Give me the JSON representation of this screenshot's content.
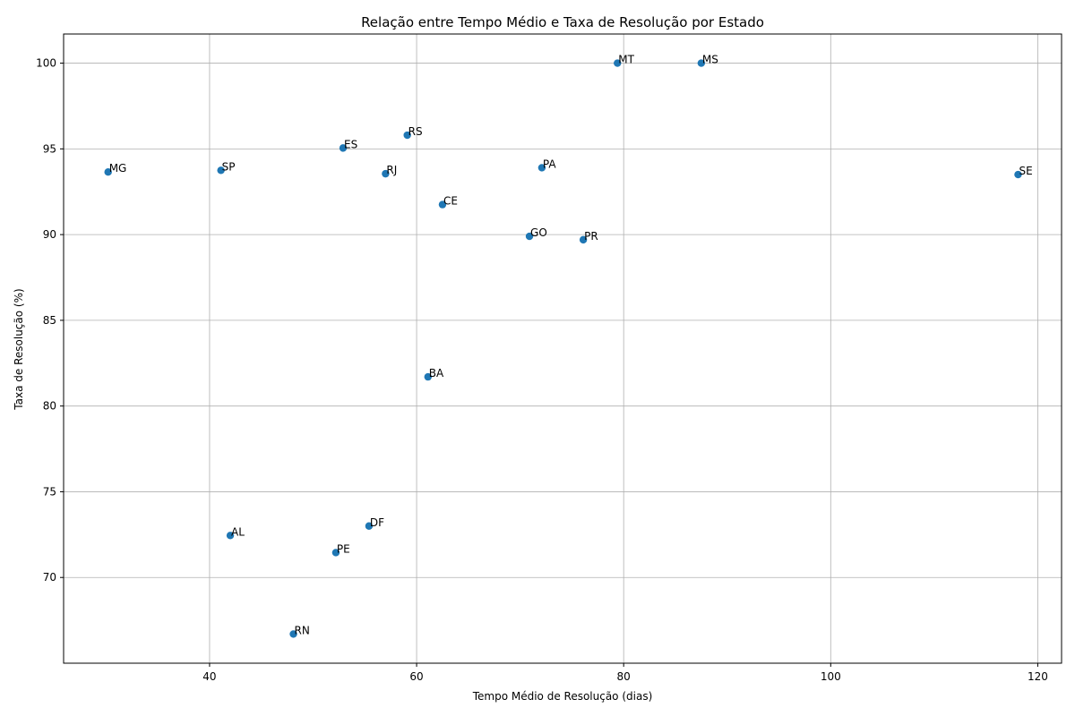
{
  "chart_data": {
    "type": "scatter",
    "title": "Relação entre Tempo Médio e Taxa de Resolução por Estado",
    "xlabel": "Tempo Médio de Resolução (dias)",
    "ylabel": "Taxa de Resolução (%)",
    "xlim": [
      25.9,
      122.3
    ],
    "ylim": [
      65.0,
      101.7
    ],
    "xticks": [
      40,
      60,
      80,
      100,
      120
    ],
    "yticks": [
      70,
      75,
      80,
      85,
      90,
      95,
      100
    ],
    "grid": true,
    "marker_color": "#1f77b4",
    "points": [
      {
        "label": "MG",
        "x": 30.2,
        "y": 93.65
      },
      {
        "label": "SP",
        "x": 41.1,
        "y": 93.75
      },
      {
        "label": "AL",
        "x": 42.0,
        "y": 72.45
      },
      {
        "label": "RN",
        "x": 48.1,
        "y": 66.7
      },
      {
        "label": "PE",
        "x": 52.2,
        "y": 71.45
      },
      {
        "label": "ES",
        "x": 52.9,
        "y": 95.05
      },
      {
        "label": "DF",
        "x": 55.4,
        "y": 73.0
      },
      {
        "label": "RJ",
        "x": 57.0,
        "y": 93.55
      },
      {
        "label": "RS",
        "x": 59.1,
        "y": 95.8
      },
      {
        "label": "BA",
        "x": 61.1,
        "y": 81.7
      },
      {
        "label": "CE",
        "x": 62.5,
        "y": 91.75
      },
      {
        "label": "GO",
        "x": 70.9,
        "y": 89.9
      },
      {
        "label": "PA",
        "x": 72.1,
        "y": 93.9
      },
      {
        "label": "PR",
        "x": 76.1,
        "y": 89.7
      },
      {
        "label": "MT",
        "x": 79.4,
        "y": 100.0
      },
      {
        "label": "MS",
        "x": 87.5,
        "y": 100.0
      },
      {
        "label": "SE",
        "x": 118.1,
        "y": 93.5
      }
    ]
  }
}
